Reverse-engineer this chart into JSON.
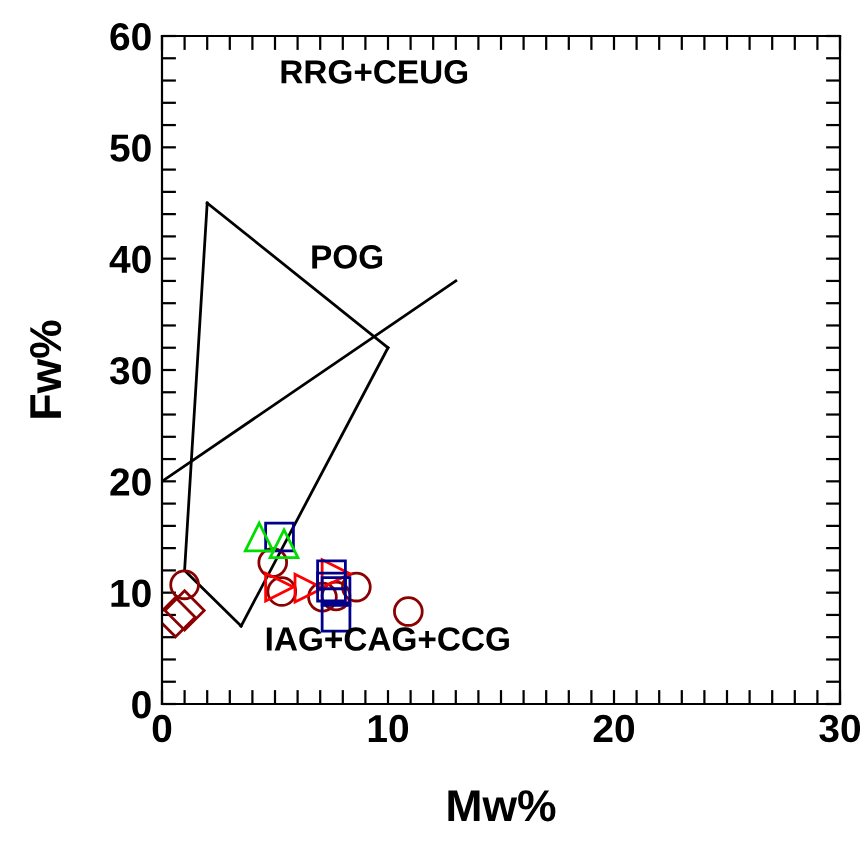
{
  "chart_data": {
    "type": "scatter",
    "xlabel": "Mw%",
    "ylabel": "Fw%",
    "xlim": [
      0,
      30
    ],
    "ylim": [
      0,
      60
    ],
    "xticks": [
      0,
      {
        "value": 1,
        "label": null
      },
      {
        "value": 2,
        "label": null
      },
      {
        "value": 3,
        "label": null
      },
      {
        "value": 4,
        "label": null
      },
      {
        "value": 5,
        "label": null
      },
      {
        "value": 6,
        "label": null
      },
      {
        "value": 7,
        "label": null
      },
      {
        "value": 8,
        "label": null
      },
      {
        "value": 9,
        "label": null
      },
      10,
      {
        "value": 11,
        "label": null
      },
      {
        "value": 12,
        "label": null
      },
      {
        "value": 13,
        "label": null
      },
      {
        "value": 14,
        "label": null
      },
      {
        "value": 15,
        "label": null
      },
      {
        "value": 16,
        "label": null
      },
      {
        "value": 17,
        "label": null
      },
      {
        "value": 18,
        "label": null
      },
      {
        "value": 19,
        "label": null
      },
      20,
      {
        "value": 21,
        "label": null
      },
      {
        "value": 22,
        "label": null
      },
      {
        "value": 23,
        "label": null
      },
      {
        "value": 24,
        "label": null
      },
      {
        "value": 25,
        "label": null
      },
      {
        "value": 26,
        "label": null
      },
      {
        "value": 27,
        "label": null
      },
      {
        "value": 28,
        "label": null
      },
      {
        "value": 29,
        "label": null
      },
      30
    ],
    "yticks": [
      0,
      {
        "value": 2,
        "label": null
      },
      {
        "value": 4,
        "label": null
      },
      {
        "value": 6,
        "label": null
      },
      {
        "value": 8,
        "label": null
      },
      10,
      {
        "value": 12,
        "label": null
      },
      {
        "value": 14,
        "label": null
      },
      {
        "value": 16,
        "label": null
      },
      {
        "value": 18,
        "label": null
      },
      20,
      {
        "value": 22,
        "label": null
      },
      {
        "value": 24,
        "label": null
      },
      {
        "value": 26,
        "label": null
      },
      {
        "value": 28,
        "label": null
      },
      30,
      {
        "value": 32,
        "label": null
      },
      {
        "value": 34,
        "label": null
      },
      {
        "value": 36,
        "label": null
      },
      {
        "value": 38,
        "label": null
      },
      40,
      {
        "value": 42,
        "label": null
      },
      {
        "value": 44,
        "label": null
      },
      {
        "value": 46,
        "label": null
      },
      {
        "value": 48,
        "label": null
      },
      50,
      {
        "value": 52,
        "label": null
      },
      {
        "value": 54,
        "label": null
      },
      {
        "value": 56,
        "label": null
      },
      {
        "value": 58,
        "label": null
      },
      60
    ],
    "grid": false,
    "legend": false,
    "series": [
      {
        "type": "line",
        "color": "#000000",
        "marker": "none",
        "line_style": "solid",
        "x": [
          1,
          2
        ],
        "values": [
          12,
          45
        ]
      },
      {
        "type": "line",
        "color": "#000000",
        "marker": "none",
        "line_style": "solid",
        "x": [
          2,
          10
        ],
        "values": [
          45,
          32
        ]
      },
      {
        "type": "line",
        "color": "#000000",
        "marker": "none",
        "line_style": "solid",
        "x": [
          3.5,
          10
        ],
        "values": [
          7,
          32
        ]
      },
      {
        "type": "line",
        "color": "#000000",
        "marker": "none",
        "line_style": "solid",
        "x": [
          1,
          3.5
        ],
        "values": [
          12,
          7
        ]
      },
      {
        "type": "line",
        "color": "#000000",
        "marker": "none",
        "line_style": "solid",
        "x": [
          0,
          13
        ],
        "values": [
          20,
          38
        ]
      },
      {
        "color": "#8b0000",
        "marker": "circle",
        "x": [
          1.0,
          4.9,
          5.3,
          7.1,
          7.7,
          8.6,
          10.9
        ],
        "values": [
          10.7,
          12.7,
          10.1,
          9.6,
          9.7,
          10.5,
          8.3
        ]
      },
      {
        "color": "#8b0000",
        "marker": "diamond",
        "x": [
          0.6,
          1.0
        ],
        "values": [
          7.8,
          8.4
        ]
      },
      {
        "color": "#ff0000",
        "marker": "triangle_right",
        "x": [
          5.2,
          6.5,
          7.7
        ],
        "values": [
          10.5,
          10.4,
          11.7
        ]
      },
      {
        "color": "#00008b",
        "marker": "square",
        "x": [
          5.2,
          7.5,
          7.5,
          7.7,
          7.7
        ],
        "values": [
          15.0,
          11.6,
          10.5,
          7.8,
          10.1
        ]
      },
      {
        "color": "#00dd00",
        "marker": "triangle",
        "x": [
          4.3,
          5.4
        ],
        "values": [
          15.0,
          14.4
        ]
      }
    ],
    "annotations": [
      "RRG+CEUG",
      "POG",
      "IAG+CAG+CCG"
    ]
  }
}
